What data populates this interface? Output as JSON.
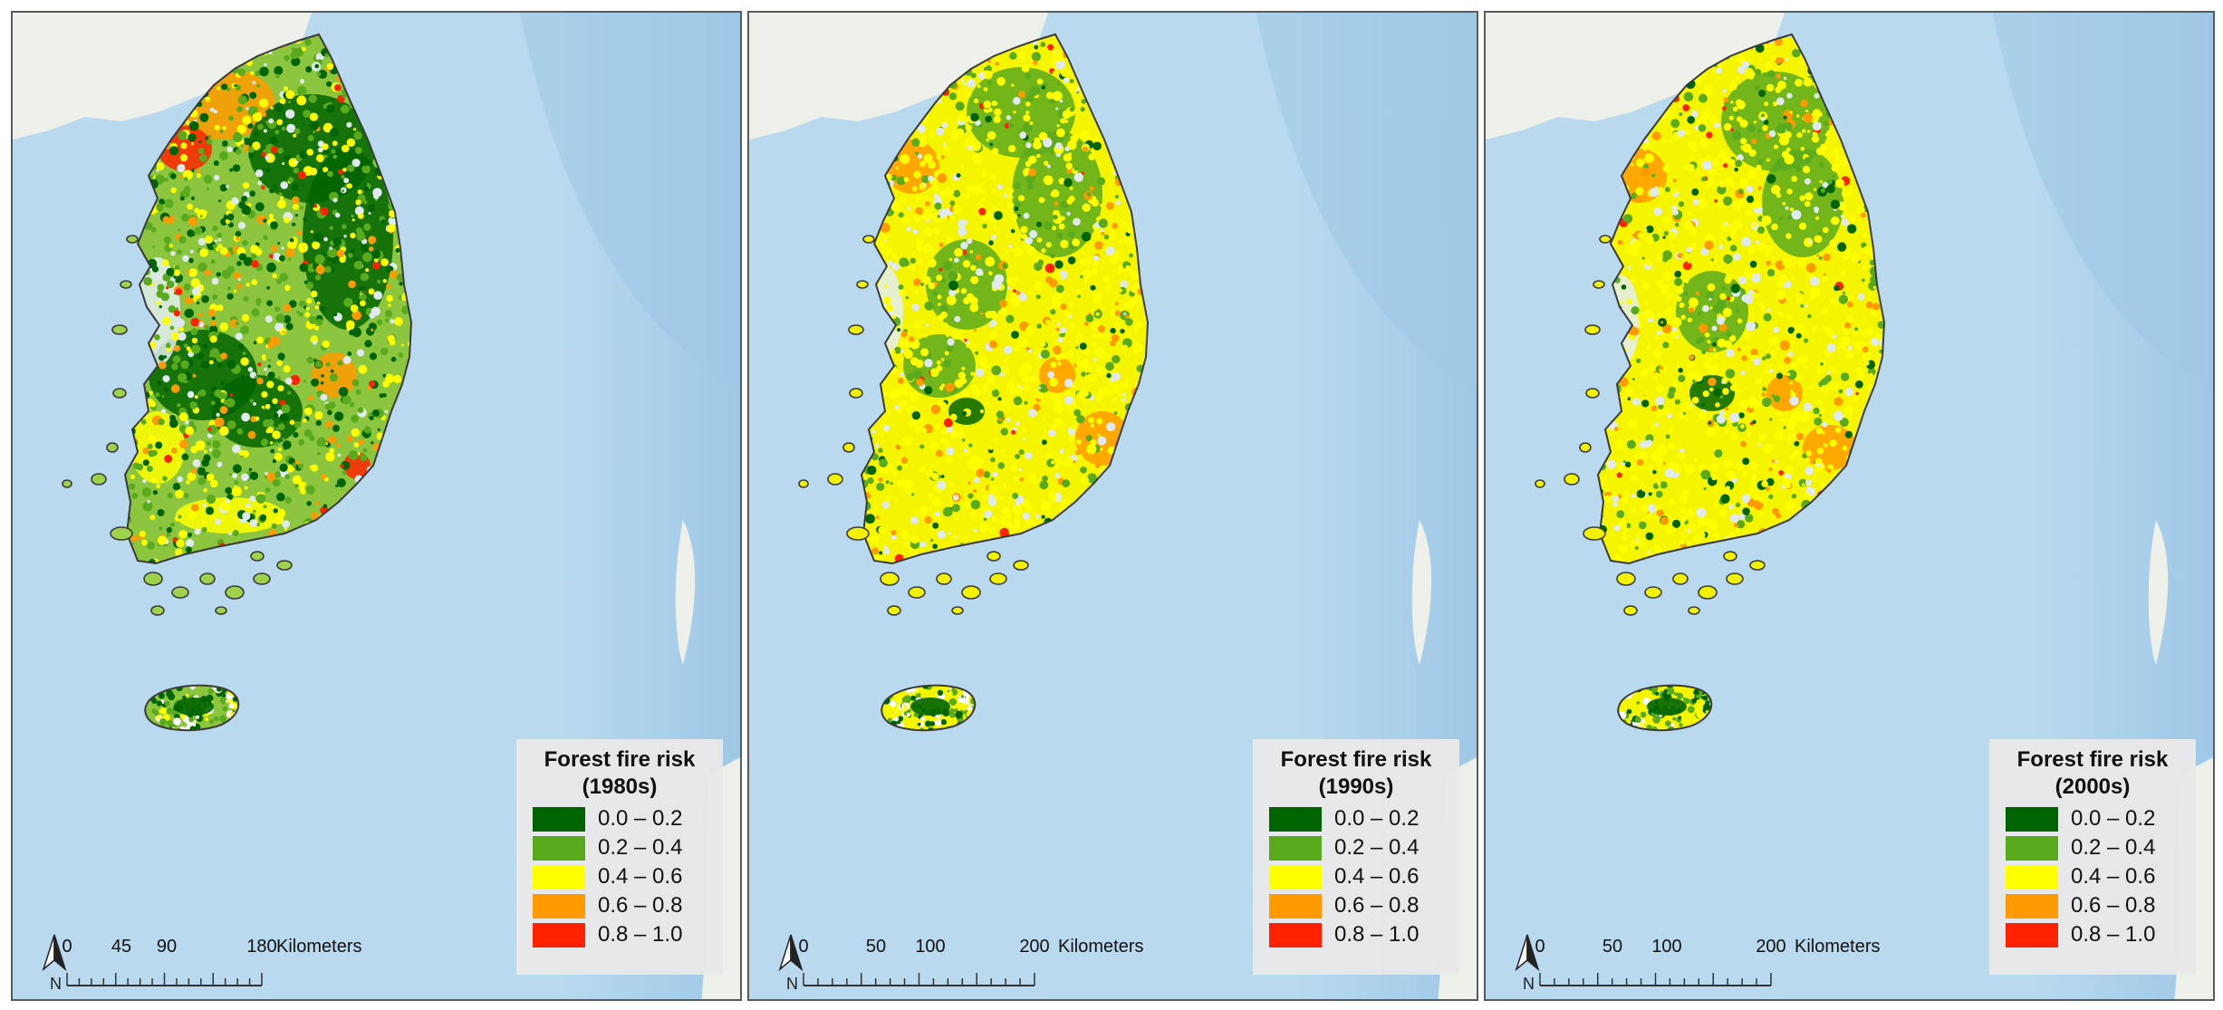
{
  "panels": [
    {
      "legend_title": "Forest fire risk",
      "period": "(1980s)",
      "scale_ticks": [
        "0",
        "45",
        "90",
        "180"
      ],
      "scale_unit": "Kilometers",
      "dominant": "green"
    },
    {
      "legend_title": "Forest fire risk",
      "period": "(1990s)",
      "scale_ticks": [
        "0",
        "50",
        "100",
        "200"
      ],
      "scale_unit": "Kilometers",
      "dominant": "yellow"
    },
    {
      "legend_title": "Forest fire risk",
      "period": "(2000s)",
      "scale_ticks": [
        "0",
        "50",
        "100",
        "200"
      ],
      "scale_unit": "Kilometers",
      "dominant": "yellow"
    }
  ],
  "legend_classes": [
    {
      "label": "0.0 – 0.2",
      "color": "#006400"
    },
    {
      "label": "0.2 – 0.4",
      "color": "#5aaa1e"
    },
    {
      "label": "0.4 – 0.6",
      "color": "#ffff00"
    },
    {
      "label": "0.6 – 0.8",
      "color": "#ff9a00"
    },
    {
      "label": "0.8 – 1.0",
      "color": "#ff2200"
    }
  ],
  "north_label": "N",
  "map_colors": {
    "sea": "#b9d9ee",
    "sea_deep": "#9ec8e6",
    "land_outside": "#eef0ea",
    "non_forest": "#dfe9ef",
    "coastline": "#3a3a3a"
  }
}
